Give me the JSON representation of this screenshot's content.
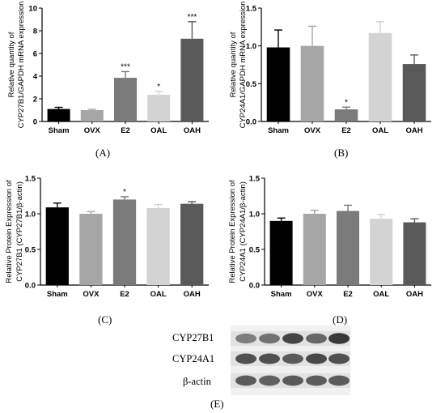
{
  "panel_labels": {
    "A": "(A)",
    "B": "(B)",
    "C": "(C)",
    "D": "(D)",
    "E": "(E)"
  },
  "colors": [
    "#000000",
    "#a6a6a6",
    "#7a7a7a",
    "#d3d3d3",
    "#595959"
  ],
  "chart_data": [
    {
      "id": "A",
      "type": "bar",
      "categories": [
        "Sham",
        "OVX",
        "E2",
        "OAL",
        "OAH"
      ],
      "values": [
        1.1,
        1.0,
        3.85,
        2.35,
        7.3
      ],
      "errors": [
        0.15,
        0.08,
        0.55,
        0.3,
        1.5
      ],
      "annotations": [
        "",
        "",
        "***",
        "*",
        "***"
      ],
      "ylabel_line1": "Relative quantity of",
      "ylabel_line2": "CYP27B1/GAPDH mRNA expression",
      "ylim": [
        0,
        10
      ],
      "yticks": [
        0,
        2,
        4,
        6,
        8,
        10
      ],
      "ytick_labels": [
        "0",
        "2",
        "4",
        "6",
        "8",
        "10"
      ]
    },
    {
      "id": "B",
      "type": "bar",
      "categories": [
        "Sham",
        "OVX",
        "E2",
        "OAL",
        "OAH"
      ],
      "values": [
        0.98,
        1.0,
        0.16,
        1.17,
        0.76
      ],
      "errors": [
        0.23,
        0.26,
        0.03,
        0.15,
        0.12
      ],
      "annotations": [
        "",
        "",
        "*",
        "",
        ""
      ],
      "ylabel_line1": "Relative quantity of",
      "ylabel_line2": "CYP24A1/GAPDH mRNA expression",
      "ylim": [
        0,
        1.5
      ],
      "yticks": [
        0,
        0.5,
        1.0,
        1.5
      ],
      "ytick_labels": [
        "0.0",
        "0.5",
        "1.0",
        "1.5"
      ]
    },
    {
      "id": "C",
      "type": "bar",
      "categories": [
        "Sham",
        "OVX",
        "E2",
        "OAL",
        "OAH"
      ],
      "values": [
        1.09,
        1.0,
        1.2,
        1.08,
        1.14
      ],
      "errors": [
        0.06,
        0.03,
        0.04,
        0.05,
        0.03
      ],
      "annotations": [
        "",
        "",
        "*",
        "",
        ""
      ],
      "ylabel_line1": "Relative Protein Expression of",
      "ylabel_line2": "CYP27B1 (CYP27B1/β-actin)",
      "ylim": [
        0,
        1.5
      ],
      "yticks": [
        0,
        0.5,
        1.0,
        1.5
      ],
      "ytick_labels": [
        "0.0",
        "0.5",
        "1.0",
        "1.5"
      ]
    },
    {
      "id": "D",
      "type": "bar",
      "categories": [
        "Sham",
        "OVX",
        "E2",
        "OAL",
        "OAH"
      ],
      "values": [
        0.9,
        1.0,
        1.04,
        0.93,
        0.88
      ],
      "errors": [
        0.04,
        0.05,
        0.08,
        0.06,
        0.05
      ],
      "annotations": [
        "",
        "",
        "",
        "",
        ""
      ],
      "ylabel_line1": "Relative Protein Expression of",
      "ylabel_line2": "CYP24A1 (CYP24A1/β-actin)",
      "ylim": [
        0,
        1.5
      ],
      "yticks": [
        0,
        0.5,
        1.0,
        1.5
      ],
      "ytick_labels": [
        "0.0",
        "0.5",
        "1.0",
        "1.5"
      ]
    }
  ],
  "blot": {
    "rows": [
      {
        "label": "CYP27B1",
        "intensities": [
          0.55,
          0.6,
          0.8,
          0.65,
          0.85
        ]
      },
      {
        "label": "CYP24A1",
        "intensities": [
          0.75,
          0.75,
          0.7,
          0.78,
          0.75
        ]
      },
      {
        "label": "β-actin",
        "intensities": [
          0.7,
          0.68,
          0.7,
          0.7,
          0.7
        ]
      }
    ]
  }
}
